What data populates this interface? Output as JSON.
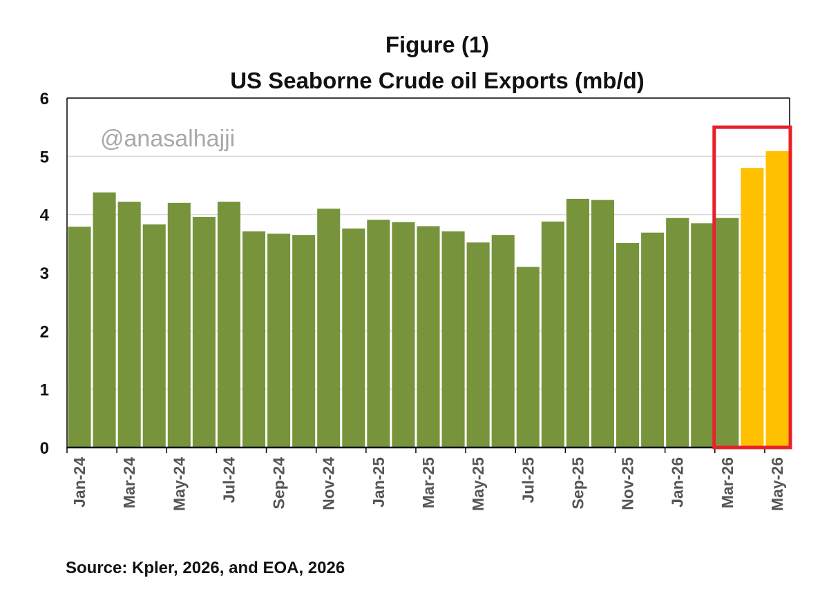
{
  "chart_data": {
    "type": "bar",
    "title_line1": "Figure (1)",
    "title_line2": "US Seaborne Crude oil Exports (mb/d)",
    "watermark": "@anasalhajji",
    "source": "Source: Kpler, 2026, and EOA, 2026",
    "xlabel": "",
    "ylabel": "",
    "ylim": [
      0,
      6
    ],
    "yticks": [
      "0",
      "1",
      "2",
      "3",
      "4",
      "5",
      "6"
    ],
    "grid": "horizontal",
    "highlight": {
      "from_index": 26,
      "to_index": 28,
      "color": "#e8202a"
    },
    "colors": {
      "bar": "#77933c",
      "highlight_bar": "#ffc000",
      "grid": "#d9d9d9",
      "axis": "#000000"
    },
    "categories": [
      "Jan-24",
      "Feb-24",
      "Mar-24",
      "Apr-24",
      "May-24",
      "Jun-24",
      "Jul-24",
      "Aug-24",
      "Sep-24",
      "Oct-24",
      "Nov-24",
      "Dec-24",
      "Jan-25",
      "Feb-25",
      "Mar-25",
      "Apr-25",
      "May-25",
      "Jun-25",
      "Jul-25",
      "Aug-25",
      "Sep-25",
      "Oct-25",
      "Nov-25",
      "Dec-25",
      "Jan-26",
      "Feb-26",
      "Mar-26",
      "Apr-26",
      "May-26"
    ],
    "visible_labels": [
      "Jan-24",
      "Mar-24",
      "May-24",
      "Jul-24",
      "Sep-24",
      "Nov-24",
      "Jan-25",
      "Mar-25",
      "May-25",
      "Jul-25",
      "Sep-25",
      "Nov-25",
      "Jan-26",
      "Mar-26",
      "May-26"
    ],
    "values": [
      3.79,
      4.38,
      4.22,
      3.83,
      4.2,
      3.96,
      4.22,
      3.71,
      3.67,
      3.65,
      4.1,
      3.76,
      3.91,
      3.87,
      3.8,
      3.71,
      3.52,
      3.65,
      3.1,
      3.88,
      4.27,
      4.25,
      3.51,
      3.69,
      3.94,
      3.85,
      3.94,
      4.8,
      5.09
    ],
    "bar_colors_key": [
      "bar",
      "bar",
      "bar",
      "bar",
      "bar",
      "bar",
      "bar",
      "bar",
      "bar",
      "bar",
      "bar",
      "bar",
      "bar",
      "bar",
      "bar",
      "bar",
      "bar",
      "bar",
      "bar",
      "bar",
      "bar",
      "bar",
      "bar",
      "bar",
      "bar",
      "bar",
      "bar",
      "highlight_bar",
      "highlight_bar"
    ]
  }
}
